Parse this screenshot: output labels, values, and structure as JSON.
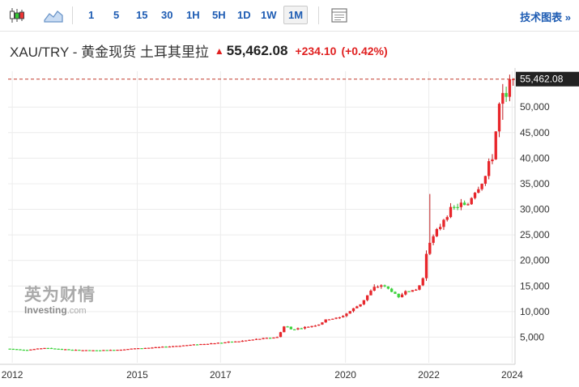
{
  "toolbar": {
    "chart_type_icons": [
      "candlestick-icon",
      "area-chart-icon"
    ],
    "intervals": [
      "1",
      "5",
      "15",
      "30",
      "1H",
      "5H",
      "1D",
      "1W",
      "1M"
    ],
    "active_interval": "1M",
    "settings_icon": "chart-settings-icon",
    "tech_label": "技术图表 »"
  },
  "header": {
    "pair": "XAU/TRY - 黄金现货 土耳其里拉",
    "arrow": "▲",
    "price": "55,462.08",
    "change": "+234.10",
    "change_pct": "(+0.42%)"
  },
  "watermark": {
    "cn": "英为财情",
    "en": "Investing",
    "suffix": ".com"
  },
  "colors": {
    "up": "#e8262b",
    "down": "#3dd43d",
    "price_line": "#c0392b",
    "price_label_bg": "#222222",
    "grid": "#ececec",
    "link": "#1e5cb3"
  },
  "chart_data": {
    "type": "candlestick",
    "y_ticks": [
      "5,000",
      "10,000",
      "15,000",
      "20,000",
      "25,000",
      "30,000",
      "35,000",
      "40,000",
      "45,000",
      "50,000"
    ],
    "y_tick_values": [
      5000,
      10000,
      15000,
      20000,
      25000,
      30000,
      35000,
      40000,
      45000,
      50000
    ],
    "ylim": [
      0,
      57000
    ],
    "x_ticks": [
      "2012",
      "2015",
      "2017",
      "2020",
      "2022",
      "2024"
    ],
    "x_tick_values": [
      2012,
      2015,
      2017,
      2020,
      2022,
      2024
    ],
    "xlim": [
      2011.9,
      2024.07
    ],
    "last_price": 55462.08,
    "last_price_label": "55,462.08",
    "series": [
      {
        "name": "",
        "points": [
          [
            2011.8,
            2800
          ],
          [
            2012.4,
            2500
          ],
          [
            2012.8,
            2900
          ],
          [
            2013.5,
            2500
          ],
          [
            2014.0,
            2400
          ],
          [
            2014.5,
            2500
          ],
          [
            2015.0,
            2800
          ],
          [
            2015.5,
            3000
          ],
          [
            2016.0,
            3300
          ],
          [
            2016.5,
            3600
          ],
          [
            2017.0,
            3900
          ],
          [
            2017.5,
            4200
          ],
          [
            2018.0,
            4700
          ],
          [
            2018.4,
            5000
          ],
          [
            2018.6,
            7500
          ],
          [
            2018.7,
            6500
          ],
          [
            2019.0,
            6800
          ],
          [
            2019.4,
            7500
          ],
          [
            2019.6,
            8500
          ],
          [
            2019.9,
            8800
          ],
          [
            2020.1,
            9800
          ],
          [
            2020.4,
            11500
          ],
          [
            2020.7,
            14500
          ],
          [
            2020.9,
            15200
          ],
          [
            2021.2,
            13800
          ],
          [
            2021.3,
            12500
          ],
          [
            2021.5,
            14300
          ],
          [
            2021.7,
            13900
          ],
          [
            2021.85,
            15500
          ],
          [
            2021.95,
            17500
          ],
          [
            2022.0,
            23500
          ],
          [
            2022.15,
            24500
          ],
          [
            2022.3,
            26500
          ],
          [
            2022.45,
            29000
          ],
          [
            2022.6,
            30000
          ],
          [
            2022.8,
            31000
          ],
          [
            2022.95,
            30500
          ],
          [
            2023.1,
            33000
          ],
          [
            2023.3,
            35000
          ],
          [
            2023.4,
            36500
          ],
          [
            2023.5,
            39000
          ],
          [
            2023.6,
            41000
          ],
          [
            2023.7,
            49500
          ],
          [
            2023.8,
            52000
          ],
          [
            2023.9,
            51500
          ],
          [
            2024.0,
            55462
          ]
        ]
      }
    ]
  }
}
